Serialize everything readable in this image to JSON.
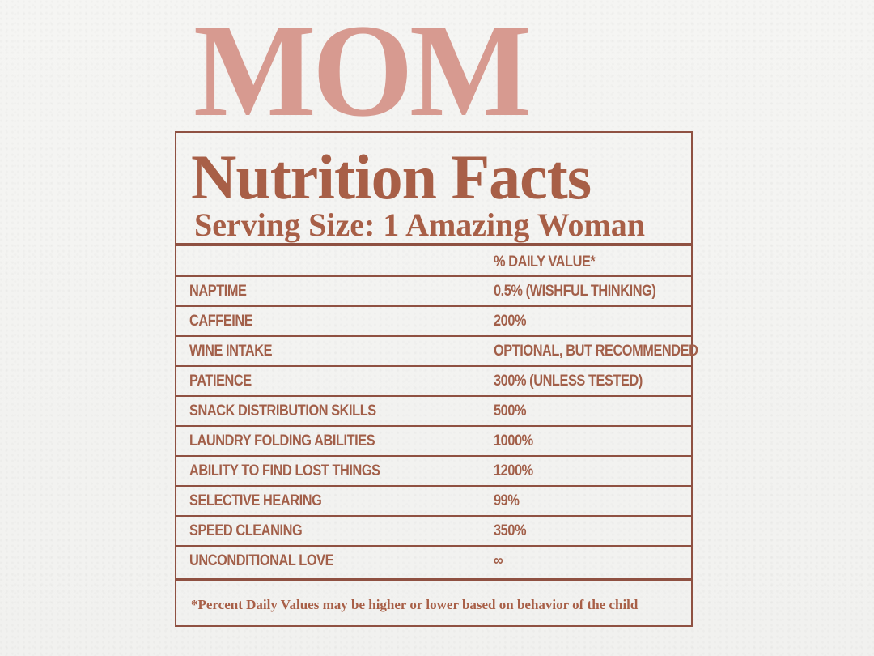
{
  "title": "MOM",
  "label": {
    "heading": "Nutrition Facts",
    "serving_size": "Serving Size: 1 Amazing Woman",
    "daily_value_header": "% Daily Value*",
    "rows": [
      {
        "item": "Naptime",
        "value": "0.5% (Wishful Thinking)"
      },
      {
        "item": "Caffeine",
        "value": "200%"
      },
      {
        "item": "Wine Intake",
        "value": "Optional, But Recommended"
      },
      {
        "item": "Patience",
        "value": "300% (Unless Tested)"
      },
      {
        "item": "Snack Distribution Skills",
        "value": "500%"
      },
      {
        "item": "Laundry Folding Abilities",
        "value": "1000%"
      },
      {
        "item": "Ability to Find Lost Things",
        "value": "1200%"
      },
      {
        "item": "Selective Hearing",
        "value": "99%"
      },
      {
        "item": "Speed Cleaning",
        "value": "350%"
      },
      {
        "item": "Unconditional Love",
        "value": "∞"
      }
    ],
    "footnote": "*Percent Daily Values may be higher or lower based on behavior of the child"
  },
  "colors": {
    "background": "#f3f3f1",
    "title": "#d79a90",
    "text": "#a85f47",
    "rule": "#8f5142"
  }
}
